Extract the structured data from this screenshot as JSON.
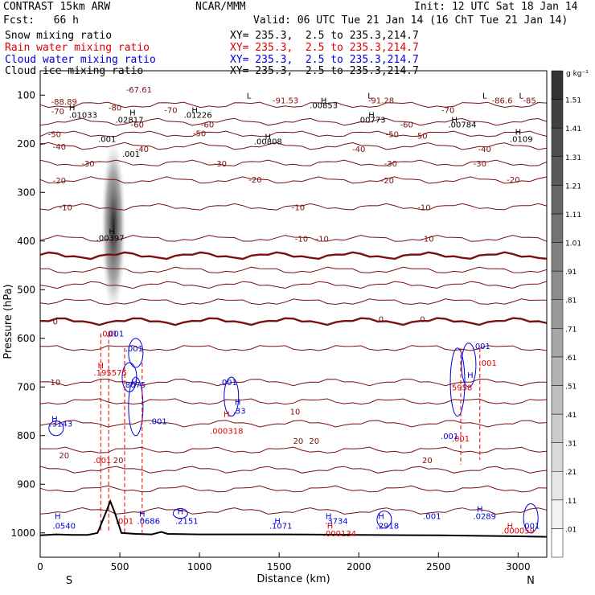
{
  "header": {
    "left1": "CONTRAST 15km ARW",
    "center1": "NCAR/MMM",
    "right1": "Init: 12 UTC Sat 18 Jan 14",
    "left2": "Fcst:   66 h",
    "right2": "Valid: 06 UTC Tue 21 Jan 14 (16 ChT Tue 21 Jan 14)",
    "fields": [
      {
        "name": "Snow mixing ratio",
        "xy": "XY= 235.3,  2.5 to 235.3,214.7",
        "color": "#000000"
      },
      {
        "name": "Rain water mixing ratio",
        "xy": "XY= 235.3,  2.5 to 235.3,214.7",
        "color": "#e00000"
      },
      {
        "name": "Cloud water mixing ratio",
        "xy": "XY= 235.3,  2.5 to 235.3,214.7",
        "color": "#0000d8"
      },
      {
        "name": "Cloud ice mixing ratio",
        "xy": "XY= 235.3,  2.5 to 235.3,214.7",
        "color": "#000000"
      }
    ]
  },
  "chart_data": {
    "type": "cross-section",
    "xlabel": "Distance (km)",
    "ylabel": "Pressure (hPa)",
    "xlim": [
      0,
      3180
    ],
    "ylim": [
      1050,
      50
    ],
    "x_ticks": [
      0,
      500,
      1000,
      1500,
      2000,
      2500,
      3000
    ],
    "y_ticks": [
      100,
      200,
      300,
      400,
      500,
      600,
      700,
      800,
      900,
      1000
    ],
    "endpoints": {
      "left": "S",
      "right": "N"
    },
    "colorbar": {
      "unit": "g kg⁻¹",
      "levels": [
        ".01",
        ".11",
        ".21",
        ".31",
        ".41",
        ".51",
        ".61",
        ".71",
        ".81",
        ".91",
        "1.01",
        "1.11",
        "1.21",
        "1.31",
        "1.41",
        "1.51"
      ],
      "colors": [
        "#ffffff",
        "#f2f2f2",
        "#e6e6e6",
        "#d9d9d9",
        "#cccccc",
        "#bfbfbf",
        "#b3b3b3",
        "#a6a6a6",
        "#999999",
        "#8c8c8c",
        "#808080",
        "#737373",
        "#666666",
        "#595959",
        "#4d4d4d",
        "#404040",
        "#333333"
      ]
    },
    "snow_column": {
      "x": 460,
      "p_top": 180,
      "p_bottom": 560
    },
    "temperature_contours": [
      {
        "label": "-70",
        "p": 120
      },
      {
        "label": "-60",
        "p": 155
      },
      {
        "label": "-50",
        "p": 180
      },
      {
        "label": "-40",
        "p": 205
      },
      {
        "label": "-30",
        "p": 240
      },
      {
        "label": "-20",
        "p": 275
      },
      {
        "label": "-10",
        "p": 330
      },
      {
        "label": "-10",
        "p": 395
      },
      {
        "label": "0",
        "p": 430,
        "bold": true
      },
      {
        "label": "0",
        "p": 460
      },
      {
        "label": "0",
        "p": 490
      },
      {
        "label": "0",
        "p": 525
      },
      {
        "label": "0",
        "p": 565,
        "bold": true
      },
      {
        "label": "10",
        "p": 620
      },
      {
        "label": "10",
        "p": 690
      },
      {
        "label": "10",
        "p": 730
      },
      {
        "label": "20",
        "p": 775
      },
      {
        "label": "20",
        "p": 830
      },
      {
        "label": "20",
        "p": 870
      },
      {
        "label": "20",
        "p": 910
      },
      {
        "label": "",
        "p": 955
      }
    ],
    "temperature_labels": [
      {
        "text": "-67.61",
        "x": 620,
        "p": 88
      },
      {
        "text": "-91.53",
        "x": 1540,
        "p": 110
      },
      {
        "text": "-91.28",
        "x": 2140,
        "p": 110
      },
      {
        "text": "-86.6",
        "x": 2900,
        "p": 110
      },
      {
        "text": "-85.",
        "x": 3080,
        "p": 110
      },
      {
        "text": "-88.89",
        "x": 150,
        "p": 113
      },
      {
        "text": "-70",
        "x": 110,
        "p": 133
      },
      {
        "text": "-80",
        "x": 470,
        "p": 125
      },
      {
        "text": "-70",
        "x": 820,
        "p": 130
      },
      {
        "text": "-70",
        "x": 2560,
        "p": 130
      },
      {
        "text": "-60",
        "x": 610,
        "p": 160
      },
      {
        "text": "-60",
        "x": 1050,
        "p": 160
      },
      {
        "text": "-60",
        "x": 2300,
        "p": 160
      },
      {
        "text": "-50",
        "x": 90,
        "p": 180
      },
      {
        "text": "-50",
        "x": 1000,
        "p": 178
      },
      {
        "text": "-50",
        "x": 2210,
        "p": 180
      },
      {
        "text": "-50",
        "x": 2390,
        "p": 183
      },
      {
        "text": "-40",
        "x": 120,
        "p": 205
      },
      {
        "text": "-40",
        "x": 640,
        "p": 210
      },
      {
        "text": "-40",
        "x": 2000,
        "p": 210
      },
      {
        "text": "-40",
        "x": 2790,
        "p": 210
      },
      {
        "text": "-30",
        "x": 300,
        "p": 240
      },
      {
        "text": "-30",
        "x": 1130,
        "p": 240
      },
      {
        "text": "-30",
        "x": 2200,
        "p": 240
      },
      {
        "text": "-30",
        "x": 2760,
        "p": 240
      },
      {
        "text": "-20",
        "x": 120,
        "p": 275
      },
      {
        "text": "-20",
        "x": 1350,
        "p": 273
      },
      {
        "text": "-20",
        "x": 2180,
        "p": 275
      },
      {
        "text": "-20",
        "x": 2970,
        "p": 273
      },
      {
        "text": "-10",
        "x": 160,
        "p": 330
      },
      {
        "text": "-10",
        "x": 1620,
        "p": 330
      },
      {
        "text": "-10",
        "x": 2410,
        "p": 330
      },
      {
        "text": "-10",
        "x": 1770,
        "p": 395
      },
      {
        "text": "-10",
        "x": 1640,
        "p": 395
      },
      {
        "text": "-10",
        "x": 2430,
        "p": 395
      },
      {
        "text": "0",
        "x": 95,
        "p": 565
      },
      {
        "text": "0",
        "x": 2140,
        "p": 560
      },
      {
        "text": "0",
        "x": 2400,
        "p": 560
      },
      {
        "text": "10",
        "x": 95,
        "p": 690
      },
      {
        "text": "10",
        "x": 1600,
        "p": 750
      },
      {
        "text": "20",
        "x": 150,
        "p": 840
      },
      {
        "text": "20",
        "x": 490,
        "p": 850
      },
      {
        "text": "20",
        "x": 1620,
        "p": 810
      },
      {
        "text": "20",
        "x": 1720,
        "p": 810
      },
      {
        "text": "20",
        "x": 2430,
        "p": 850
      }
    ],
    "snow_ice_labels": [
      {
        "text": "L",
        "x": 1310,
        "p": 100
      },
      {
        "text": "L",
        "x": 2070,
        "p": 100
      },
      {
        "text": "L",
        "x": 2790,
        "p": 100
      },
      {
        "text": "L",
        "x": 3020,
        "p": 100
      },
      {
        "text": "H",
        "x": 200,
        "p": 125
      },
      {
        "text": ".01033",
        "x": 270,
        "p": 140
      },
      {
        "text": "H",
        "x": 580,
        "p": 135
      },
      {
        "text": ".02817",
        "x": 560,
        "p": 150
      },
      {
        "text": "H",
        "x": 970,
        "p": 130
      },
      {
        "text": ".01226",
        "x": 990,
        "p": 140
      },
      {
        "text": "H",
        "x": 1780,
        "p": 110
      },
      {
        "text": ".00853",
        "x": 1780,
        "p": 120
      },
      {
        "text": "H",
        "x": 2080,
        "p": 140
      },
      {
        "text": ".00773",
        "x": 2080,
        "p": 150
      },
      {
        "text": "H",
        "x": 2600,
        "p": 150
      },
      {
        "text": ".00784",
        "x": 2650,
        "p": 160
      },
      {
        "text": "H",
        "x": 3000,
        "p": 175
      },
      {
        "text": ".0109",
        "x": 3020,
        "p": 190
      },
      {
        "text": "H",
        "x": 1430,
        "p": 185
      },
      {
        "text": ".00808",
        "x": 1430,
        "p": 195
      },
      {
        "text": ".001",
        "x": 420,
        "p": 190
      },
      {
        "text": ".001",
        "x": 570,
        "p": 220
      },
      {
        "text": "H",
        "x": 450,
        "p": 380
      },
      {
        "text": ".00397",
        "x": 440,
        "p": 393
      }
    ],
    "rain_labels": [
      {
        "text": ".001",
        "x": 430,
        "p": 590
      },
      {
        "text": "H",
        "x": 380,
        "p": 655
      },
      {
        "text": ".195575",
        "x": 440,
        "p": 670
      },
      {
        "text": ".001",
        "x": 390,
        "p": 850
      },
      {
        "text": ".001",
        "x": 530,
        "p": 975
      },
      {
        "text": "H",
        "x": 1170,
        "p": 755
      },
      {
        "text": ".000318",
        "x": 1170,
        "p": 790
      },
      {
        "text": ".001",
        "x": 2640,
        "p": 805
      },
      {
        "text": ".001",
        "x": 2810,
        "p": 650
      },
      {
        "text": ".5958",
        "x": 2640,
        "p": 700
      },
      {
        "text": "H",
        "x": 1820,
        "p": 985
      },
      {
        "text": ".000134",
        "x": 1880,
        "p": 1000
      },
      {
        "text": "H",
        "x": 2950,
        "p": 985
      },
      {
        "text": ".000059",
        "x": 3000,
        "p": 995
      }
    ],
    "cloud_water_labels": [
      {
        "text": ".001",
        "x": 470,
        "p": 590
      },
      {
        "text": ".001",
        "x": 590,
        "p": 620
      },
      {
        "text": "H",
        "x": 590,
        "p": 690
      },
      {
        "text": ".8075",
        "x": 590,
        "p": 695
      },
      {
        "text": ".001",
        "x": 740,
        "p": 770
      },
      {
        "text": ".001",
        "x": 1180,
        "p": 690
      },
      {
        "text": "H",
        "x": 1240,
        "p": 730
      },
      {
        "text": ".33",
        "x": 1250,
        "p": 748
      },
      {
        "text": "H",
        "x": 90,
        "p": 765
      },
      {
        "text": ".3143",
        "x": 130,
        "p": 775
      },
      {
        "text": "H",
        "x": 110,
        "p": 965
      },
      {
        "text": ".0540",
        "x": 150,
        "p": 985
      },
      {
        "text": "H",
        "x": 640,
        "p": 960
      },
      {
        "text": ".0686",
        "x": 680,
        "p": 975
      },
      {
        "text": "H",
        "x": 880,
        "p": 955
      },
      {
        "text": ".2151",
        "x": 920,
        "p": 975
      },
      {
        "text": "H",
        "x": 1490,
        "p": 975
      },
      {
        "text": ".1071",
        "x": 1510,
        "p": 985
      },
      {
        "text": "H",
        "x": 1810,
        "p": 965
      },
      {
        "text": ".3734",
        "x": 1860,
        "p": 975
      },
      {
        "text": "H",
        "x": 2140,
        "p": 965
      },
      {
        "text": ".2918",
        "x": 2180,
        "p": 985
      },
      {
        "text": ".001",
        "x": 2460,
        "p": 965
      },
      {
        "text": "H",
        "x": 2760,
        "p": 950
      },
      {
        "text": ".0289",
        "x": 2790,
        "p": 965
      },
      {
        "text": ".001",
        "x": 2570,
        "p": 800
      },
      {
        "text": ".001",
        "x": 2770,
        "p": 615
      },
      {
        "text": "H",
        "x": 2700,
        "p": 675
      },
      {
        "text": ".001",
        "x": 3080,
        "p": 985
      }
    ],
    "terrain": [
      {
        "x": 0,
        "p": 1005
      },
      {
        "x": 100,
        "p": 1003
      },
      {
        "x": 200,
        "p": 1004
      },
      {
        "x": 300,
        "p": 1004
      },
      {
        "x": 360,
        "p": 1000
      },
      {
        "x": 410,
        "p": 960
      },
      {
        "x": 440,
        "p": 935
      },
      {
        "x": 470,
        "p": 960
      },
      {
        "x": 510,
        "p": 1000
      },
      {
        "x": 600,
        "p": 1002
      },
      {
        "x": 700,
        "p": 1003
      },
      {
        "x": 760,
        "p": 998
      },
      {
        "x": 800,
        "p": 1002
      },
      {
        "x": 1000,
        "p": 1003
      },
      {
        "x": 1500,
        "p": 1003
      },
      {
        "x": 2000,
        "p": 1004
      },
      {
        "x": 2500,
        "p": 1005
      },
      {
        "x": 3000,
        "p": 1007
      },
      {
        "x": 3180,
        "p": 1008
      }
    ]
  }
}
